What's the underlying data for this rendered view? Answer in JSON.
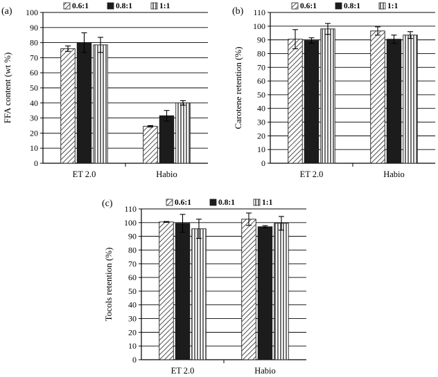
{
  "colors": {
    "grid": "#000000",
    "axis": "#000000",
    "bar_outline": "#1a1a1a",
    "solid_fill": "#1c1c1c"
  },
  "chart_data": [
    {
      "panel": "(a)",
      "type": "bar",
      "ylabel": "FFA content (wt %)",
      "ylim": [
        0,
        100
      ],
      "ytick_step": 10,
      "grid": true,
      "legend_position": "top",
      "categories": [
        "ET 2.0",
        "Habio"
      ],
      "series": [
        {
          "name": "0.6:1",
          "pattern": "diagonal-hatch",
          "values": [
            76,
            24.5
          ],
          "errors": [
            1.8,
            0.5
          ]
        },
        {
          "name": "0.8:1",
          "pattern": "solid-black",
          "values": [
            80,
            31.5
          ],
          "errors": [
            6.5,
            3.5
          ]
        },
        {
          "name": "1:1",
          "pattern": "vertical-hatch",
          "values": [
            78.5,
            40
          ],
          "errors": [
            5,
            1.5
          ]
        }
      ]
    },
    {
      "panel": "(b)",
      "type": "bar",
      "ylabel": "Carotene retention (%)",
      "ylim": [
        0,
        110
      ],
      "ytick_step": 10,
      "grid": true,
      "legend_position": "top",
      "categories": [
        "ET 2.0",
        "Habio"
      ],
      "series": [
        {
          "name": "0.6:1",
          "pattern": "diagonal-hatch",
          "values": [
            90.5,
            96.5
          ],
          "errors": [
            7,
            3
          ]
        },
        {
          "name": "0.8:1",
          "pattern": "solid-black",
          "values": [
            89.5,
            90.5
          ],
          "errors": [
            2,
            3
          ]
        },
        {
          "name": "1:1",
          "pattern": "vertical-hatch",
          "values": [
            98,
            93.5
          ],
          "errors": [
            4,
            2.5
          ]
        }
      ]
    },
    {
      "panel": "(c)",
      "type": "bar",
      "ylabel": "Tocols retention (%)",
      "ylim": [
        0,
        110
      ],
      "ytick_step": 10,
      "grid": true,
      "legend_position": "top",
      "categories": [
        "ET 2.0",
        "Habio"
      ],
      "series": [
        {
          "name": "0.6:1",
          "pattern": "diagonal-hatch",
          "values": [
            100.5,
            102.5
          ],
          "errors": [
            0.3,
            4.5
          ]
        },
        {
          "name": "0.8:1",
          "pattern": "solid-black",
          "values": [
            99.5,
            97
          ],
          "errors": [
            6.5,
            0.8
          ]
        },
        {
          "name": "1:1",
          "pattern": "vertical-hatch",
          "values": [
            95.5,
            99.5
          ],
          "errors": [
            7,
            5
          ]
        }
      ]
    }
  ]
}
